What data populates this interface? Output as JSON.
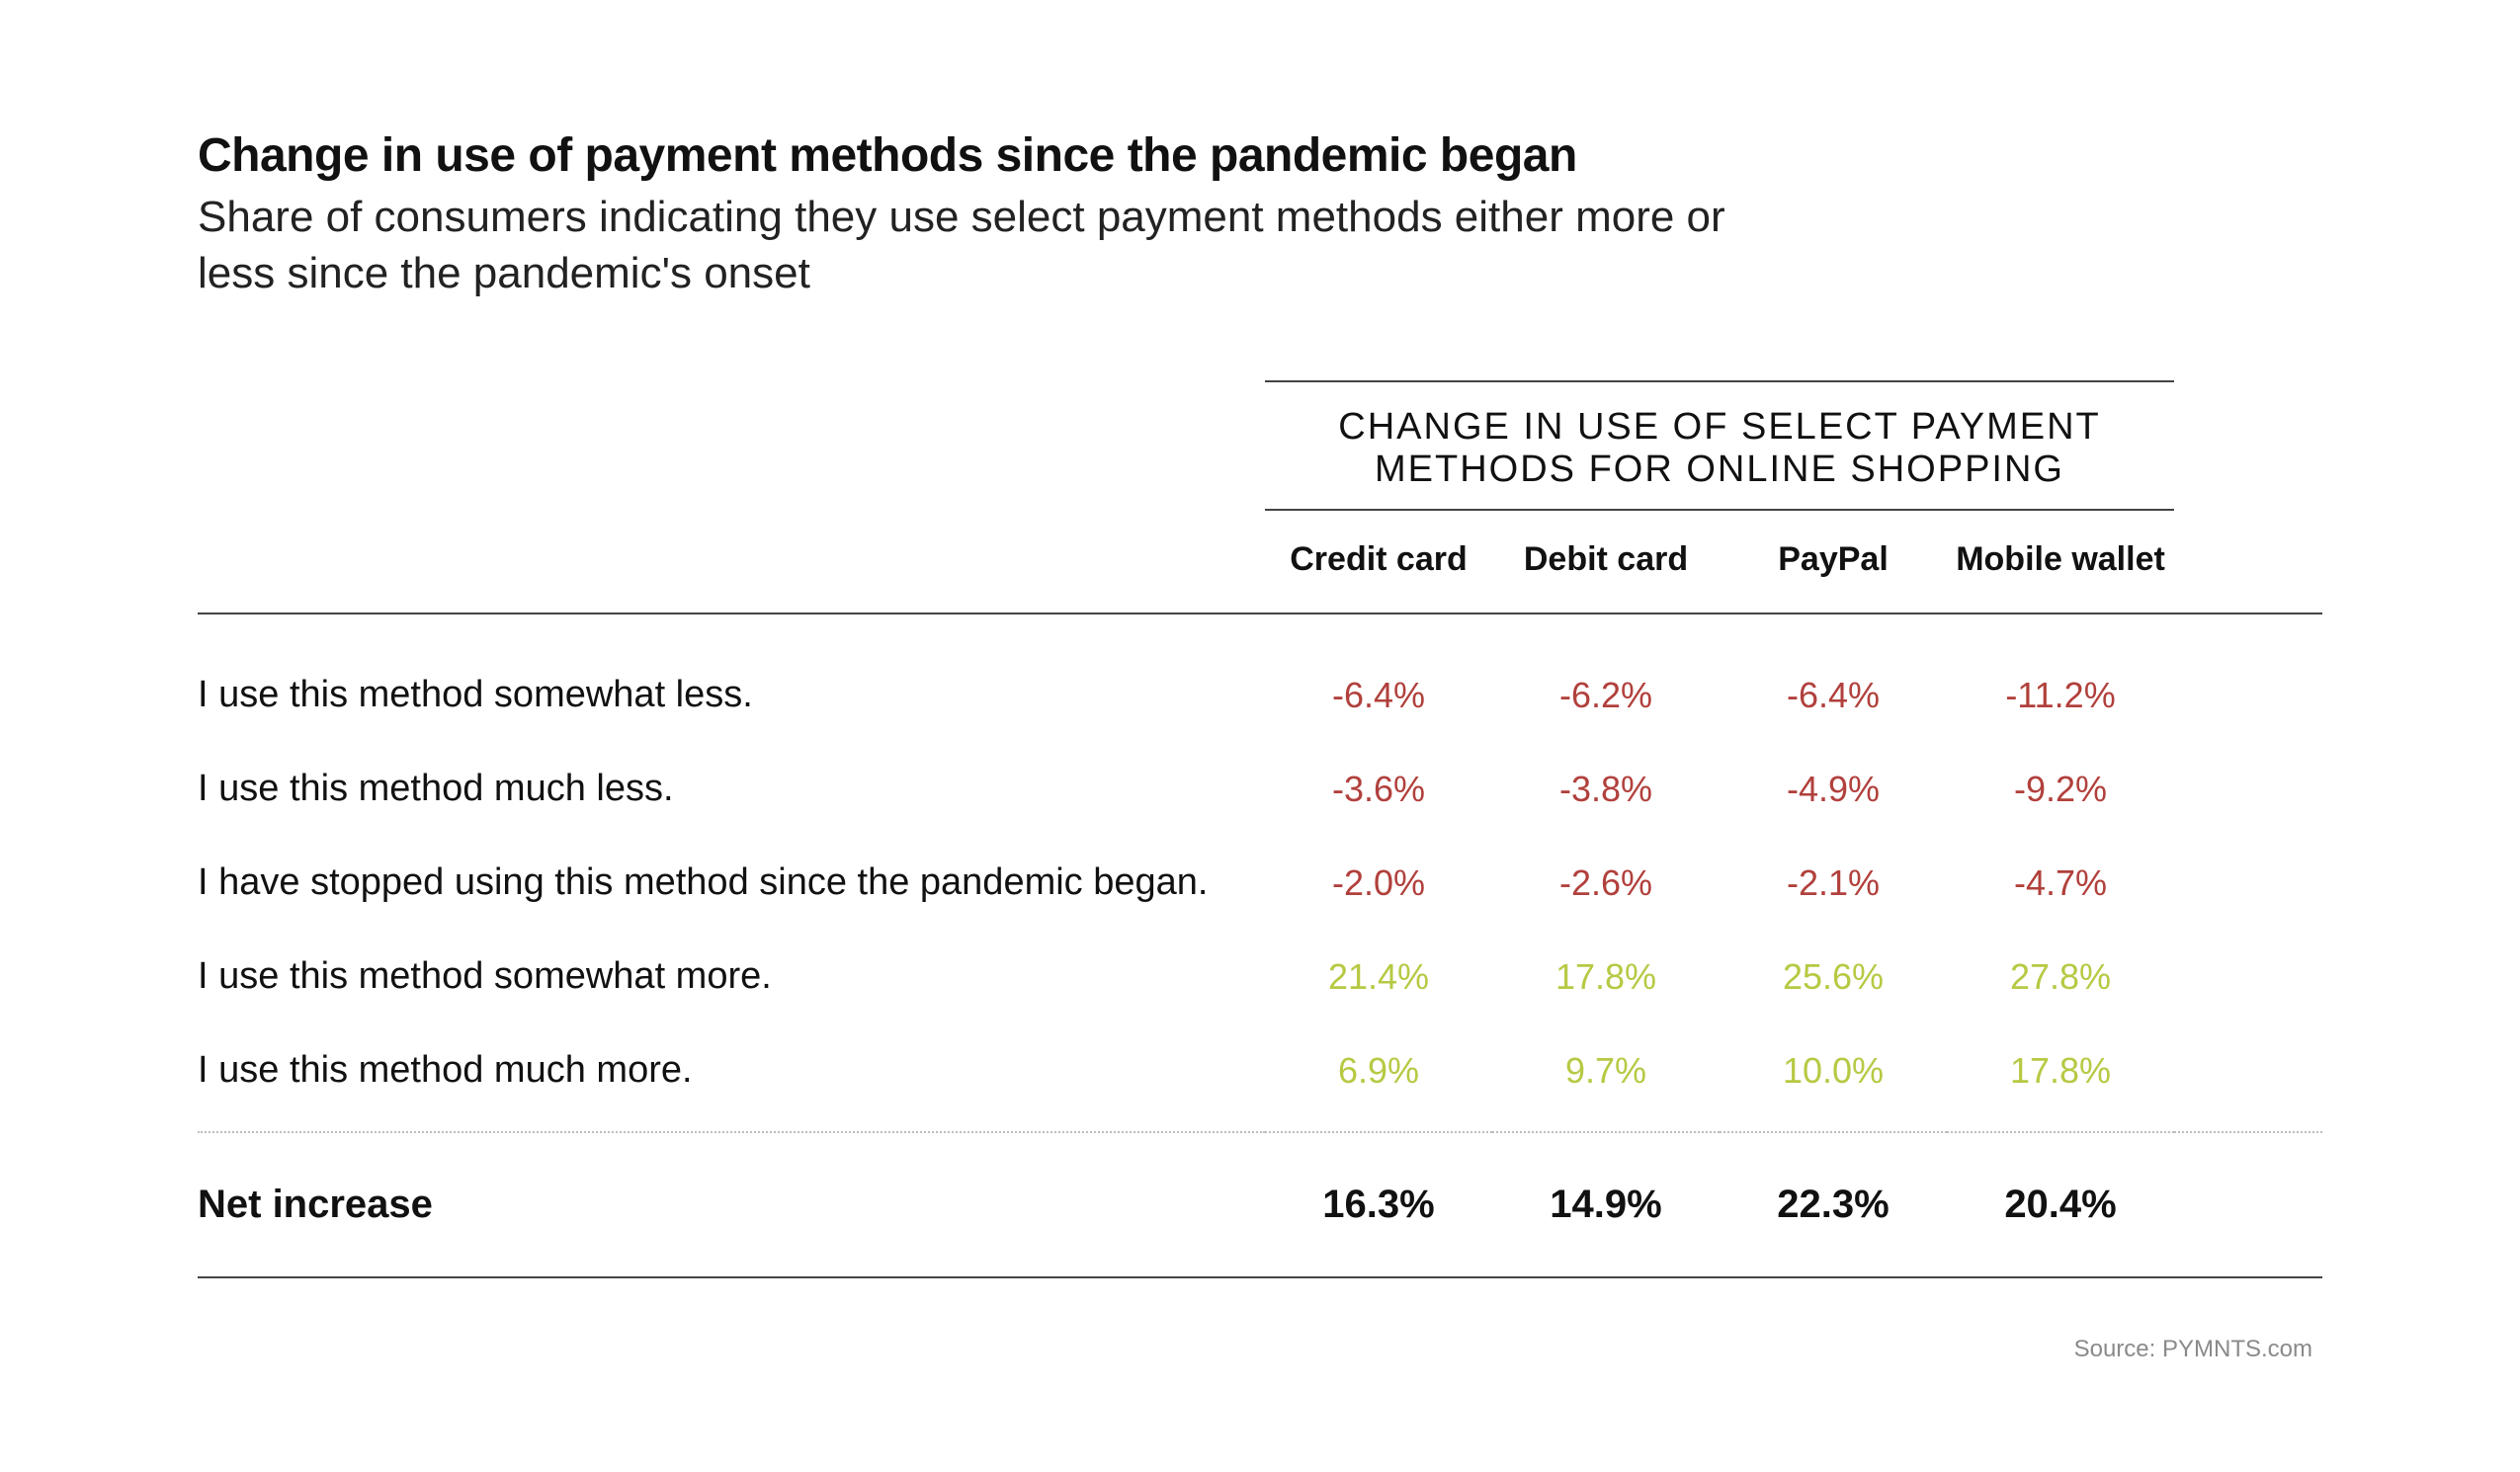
{
  "header": {
    "title": "Change in use of payment methods since the pandemic began",
    "subtitle": "Share of consumers indicating they use select payment methods either more or less since the pandemic's onset"
  },
  "table": {
    "type": "table",
    "span_header": "CHANGE IN USE OF SELECT PAYMENT METHODS FOR ONLINE SHOPPING",
    "columns": [
      "Credit card",
      "Debit card",
      "PayPal",
      "Mobile wallet"
    ],
    "rows": [
      {
        "label": "I use this method somewhat less.",
        "sign": "neg",
        "values": [
          "-6.4%",
          "-6.2%",
          "-6.4%",
          "-11.2%"
        ]
      },
      {
        "label": "I use this method much less.",
        "sign": "neg",
        "values": [
          "-3.6%",
          "-3.8%",
          "-4.9%",
          "-9.2%"
        ]
      },
      {
        "label": "I have stopped using this method since the pandemic began.",
        "sign": "neg",
        "values": [
          "-2.0%",
          "-2.6%",
          "-2.1%",
          "-4.7%"
        ]
      },
      {
        "label": "I use this method somewhat more.",
        "sign": "pos",
        "values": [
          "21.4%",
          "17.8%",
          "25.6%",
          "27.8%"
        ]
      },
      {
        "label": "I use this method much more.",
        "sign": "pos",
        "values": [
          "6.9%",
          "9.7%",
          "10.0%",
          "17.8%"
        ]
      }
    ],
    "net_row": {
      "label": "Net increase",
      "values": [
        "16.3%",
        "14.9%",
        "22.3%",
        "20.4%"
      ]
    },
    "colors": {
      "negative": "#b1403c",
      "positive": "#b7c943",
      "text": "#111111",
      "rule": "#444444",
      "dotted": "#bdbdbd",
      "background": "#ffffff"
    },
    "font": {
      "title_size_pt": 36,
      "subtitle_size_pt": 33,
      "header_size_pt": 28,
      "body_size_pt": 28
    }
  },
  "source": "Source: PYMNTS.com"
}
